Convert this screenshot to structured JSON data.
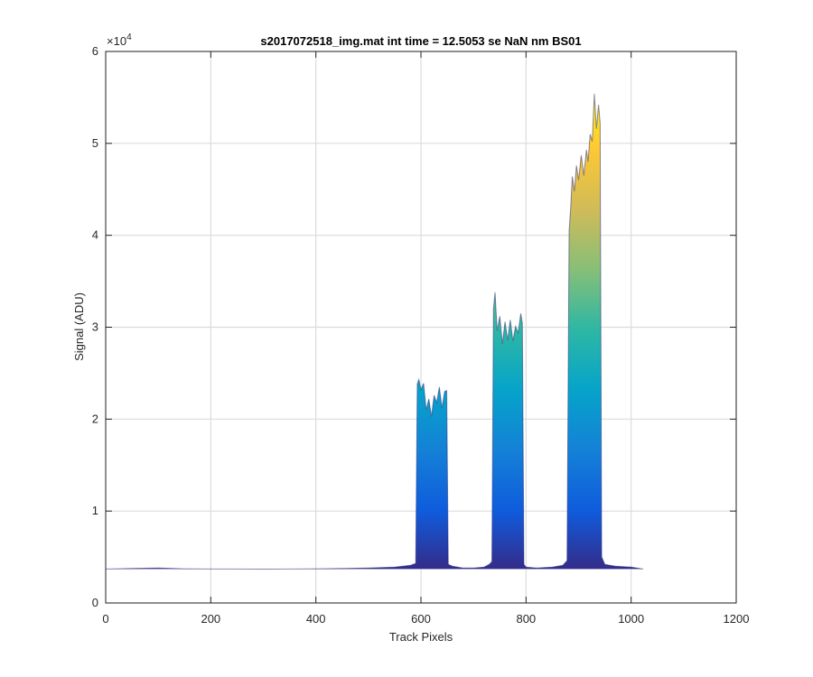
{
  "chart_data": {
    "type": "area",
    "title": "s2017072518_img.mat int time = 12.5053 se  NaN nm BS01",
    "xlabel": "Track Pixels",
    "ylabel": "Signal (ADU)",
    "xlim": [
      0,
      1200
    ],
    "ylim": [
      0,
      60000
    ],
    "xticks": [
      0,
      200,
      400,
      600,
      800,
      1000,
      1200
    ],
    "yticks": [
      0,
      1,
      2,
      3,
      4,
      5,
      6
    ],
    "y_exponent_label": "×10",
    "y_exponent_power": "4",
    "grid": true,
    "colormap": [
      "#352a87",
      "#0f5cdd",
      "#1481d6",
      "#06a4ca",
      "#2eb7a4",
      "#87bf77",
      "#d1bb59",
      "#fec832",
      "#f9fb0e"
    ],
    "series": [
      {
        "x": [
          0,
          50,
          100,
          150,
          200,
          250,
          300,
          350,
          400,
          450,
          500,
          550,
          580,
          590,
          593,
          596,
          600,
          605,
          610,
          615,
          620,
          625,
          630,
          635,
          640,
          645,
          649,
          652,
          660,
          680,
          700,
          720,
          730,
          735,
          738,
          741,
          745,
          750,
          755,
          760,
          765,
          770,
          775,
          780,
          785,
          790,
          793,
          796,
          800,
          820,
          850,
          870,
          878,
          882,
          885,
          888,
          892,
          896,
          900,
          905,
          910,
          915,
          918,
          922,
          926,
          930,
          934,
          938,
          941,
          944,
          950,
          970,
          1000,
          1023
        ],
        "y": [
          3700,
          3750,
          3800,
          3720,
          3700,
          3700,
          3680,
          3700,
          3720,
          3750,
          3800,
          3900,
          4100,
          4300,
          23800,
          24300,
          23200,
          23900,
          21000,
          22200,
          20300,
          22600,
          21800,
          23500,
          21200,
          23000,
          23100,
          4200,
          4000,
          3800,
          3800,
          3900,
          4200,
          4500,
          32000,
          33800,
          29600,
          31200,
          28200,
          30600,
          28600,
          30800,
          28500,
          30100,
          29400,
          31500,
          30400,
          4200,
          3900,
          3800,
          3900,
          4100,
          4600,
          40500,
          43000,
          46400,
          44800,
          47600,
          46000,
          48700,
          46500,
          49300,
          48000,
          51000,
          50200,
          55400,
          51600,
          54200,
          52200,
          5000,
          4200,
          4000,
          3900,
          3700
        ]
      }
    ]
  }
}
